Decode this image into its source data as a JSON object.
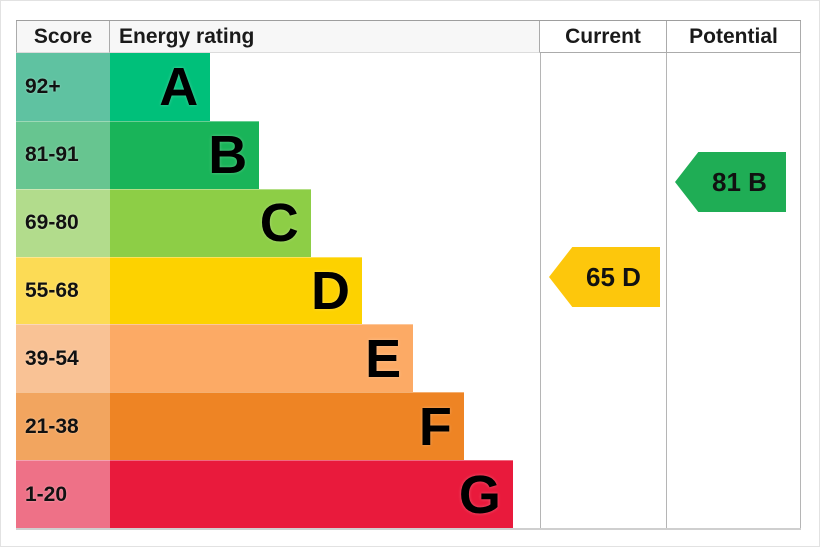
{
  "header": {
    "score": "Score",
    "energy_rating": "Energy rating",
    "current": "Current",
    "potential": "Potential"
  },
  "rows": [
    {
      "score_range": "92+",
      "letter": "A",
      "bar_color": "#00c07a",
      "score_color": "#5fc2a1",
      "width_pct": 23.3
    },
    {
      "score_range": "81-91",
      "letter": "B",
      "bar_color": "#19b459",
      "score_color": "#67c590",
      "width_pct": 34.7
    },
    {
      "score_range": "69-80",
      "letter": "C",
      "bar_color": "#8dce46",
      "score_color": "#b2dc8c",
      "width_pct": 46.7
    },
    {
      "score_range": "55-68",
      "letter": "D",
      "bar_color": "#fdd200",
      "score_color": "#fcdb55",
      "width_pct": 58.6
    },
    {
      "score_range": "39-54",
      "letter": "E",
      "bar_color": "#fcaa65",
      "score_color": "#f9c295",
      "width_pct": 70.5
    },
    {
      "score_range": "21-38",
      "letter": "F",
      "bar_color": "#ee8424",
      "score_color": "#f2a55f",
      "width_pct": 82.3
    },
    {
      "score_range": "1-20",
      "letter": "G",
      "bar_color": "#e91a3c",
      "score_color": "#ee7187",
      "width_pct": 93.7
    }
  ],
  "current": {
    "label": "65 D",
    "value": 65,
    "band": "D",
    "arrow_color": "#fdc70c"
  },
  "potential": {
    "label": "81 B",
    "value": 81,
    "band": "B",
    "arrow_color": "#1fad55"
  },
  "chart_data": {
    "type": "bar",
    "title": "EPC energy efficiency rating chart",
    "columns": [
      "Score",
      "Energy rating",
      "Current",
      "Potential"
    ],
    "categories": [
      "A",
      "B",
      "C",
      "D",
      "E",
      "F",
      "G"
    ],
    "band_score_ranges": [
      "92+",
      "81-91",
      "69-80",
      "55-68",
      "39-54",
      "21-38",
      "1-20"
    ],
    "bar_relative_widths_pct": [
      23.3,
      34.7,
      46.7,
      58.6,
      70.5,
      82.3,
      93.7
    ],
    "band_colors": [
      "#00c07a",
      "#19b459",
      "#8dce46",
      "#fdd200",
      "#fcaa65",
      "#ee8424",
      "#e91a3c"
    ],
    "current": {
      "value": 65,
      "band": "D"
    },
    "potential": {
      "value": 81,
      "band": "B"
    },
    "legend_position": "none",
    "grid": false
  }
}
